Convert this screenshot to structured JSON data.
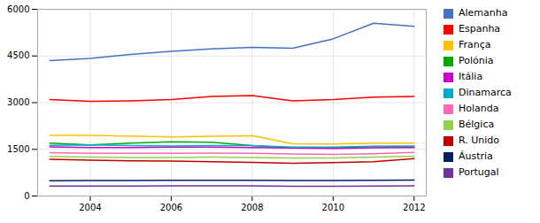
{
  "chart_data": {
    "type": "line",
    "x": [
      2003,
      2004,
      2005,
      2006,
      2007,
      2008,
      2009,
      2010,
      2011,
      2012
    ],
    "series": [
      {
        "name": "Alemanha",
        "color": "#4472C4",
        "values": [
          4350,
          4420,
          4550,
          4650,
          4730,
          4780,
          4750,
          5050,
          5550,
          5450
        ]
      },
      {
        "name": "Espanha",
        "color": "#FF0000",
        "values": [
          3100,
          3040,
          3060,
          3100,
          3200,
          3230,
          3060,
          3100,
          3180,
          3200
        ]
      },
      {
        "name": "França",
        "color": "#FFC000",
        "values": [
          1950,
          1950,
          1930,
          1900,
          1920,
          1940,
          1680,
          1670,
          1700,
          1700
        ]
      },
      {
        "name": "Polónia",
        "color": "#00AA00",
        "values": [
          1700,
          1640,
          1700,
          1740,
          1730,
          1620,
          1540,
          1540,
          1590,
          1580
        ]
      },
      {
        "name": "Itália",
        "color": "#CC00CC",
        "values": [
          1580,
          1560,
          1560,
          1570,
          1570,
          1560,
          1540,
          1530,
          1550,
          1560
        ]
      },
      {
        "name": "Dinamarca",
        "color": "#00AACC",
        "values": [
          1630,
          1640,
          1620,
          1610,
          1620,
          1620,
          1570,
          1570,
          1600,
          1610
        ]
      },
      {
        "name": "Holanda",
        "color": "#FF69B4",
        "values": [
          1390,
          1370,
          1370,
          1370,
          1380,
          1370,
          1350,
          1340,
          1360,
          1400
        ]
      },
      {
        "name": "Bélgica",
        "color": "#92D050",
        "values": [
          1270,
          1250,
          1240,
          1240,
          1250,
          1240,
          1220,
          1220,
          1250,
          1280
        ]
      },
      {
        "name": "R. Unido",
        "color": "#C00000",
        "values": [
          1180,
          1150,
          1130,
          1120,
          1100,
          1080,
          1050,
          1070,
          1100,
          1200
        ]
      },
      {
        "name": "Áustria",
        "color": "#002060",
        "values": [
          490,
          500,
          500,
          505,
          505,
          505,
          495,
          495,
          505,
          510
        ]
      },
      {
        "name": "Portugal",
        "color": "#7030A0",
        "values": [
          320,
          320,
          320,
          325,
          325,
          325,
          315,
          315,
          320,
          325
        ]
      }
    ],
    "xlim": [
      2002.7,
      2012.3
    ],
    "xticks": [
      2004,
      2006,
      2008,
      2010,
      2012
    ],
    "ylim": [
      0,
      6000
    ],
    "yticks": [
      0,
      1500,
      3000,
      4500,
      6000
    ],
    "grid": true,
    "legend": "right"
  }
}
